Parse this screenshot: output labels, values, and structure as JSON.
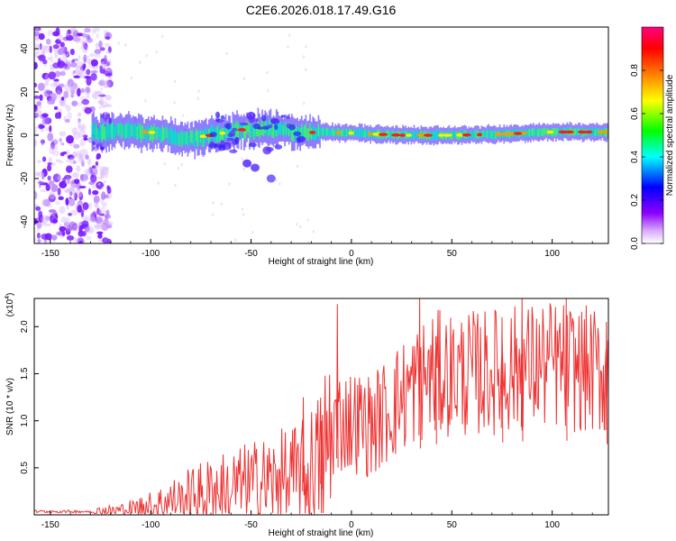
{
  "title": "C2E6.2026.018.17.49.G16",
  "chart_data": [
    {
      "type": "heatmap",
      "name": "spectrogram",
      "xlabel": "Height of straight line (km)",
      "ylabel": "Frequency (Hz)",
      "xlim": [
        -158,
        128
      ],
      "ylim": [
        -50,
        50
      ],
      "xticks": [
        -150,
        -100,
        -50,
        0,
        50,
        100
      ],
      "yticks": [
        -40,
        -20,
        0,
        20,
        40
      ],
      "colorbar": {
        "label": "Normalized spectral amplitude",
        "range": [
          0.0,
          1.0
        ],
        "ticks": [
          "0.0",
          "0.2",
          "0.4",
          "0.6",
          "0.8"
        ],
        "colors": [
          "#ffffff",
          "#8b00ff",
          "#0000ff",
          "#00ffff",
          "#00ff00",
          "#ffff00",
          "#ff8000",
          "#ff0000",
          "#ff0080"
        ]
      },
      "noise_region_km": [
        -158,
        -128
      ],
      "signal_track": [
        {
          "x": -128,
          "f": 1.5
        },
        {
          "x": -110,
          "f": 2
        },
        {
          "x": -95,
          "f": 1
        },
        {
          "x": -85,
          "f": -2
        },
        {
          "x": -70,
          "f": 0
        },
        {
          "x": -55,
          "f": 2.5
        },
        {
          "x": -40,
          "f": 3
        },
        {
          "x": -25,
          "f": 1
        },
        {
          "x": -15,
          "f": 1.5
        },
        {
          "x": 0,
          "f": 1
        },
        {
          "x": 25,
          "f": 0
        },
        {
          "x": 50,
          "f": 0
        },
        {
          "x": 75,
          "f": 0.5
        },
        {
          "x": 100,
          "f": 1.5
        },
        {
          "x": 128,
          "f": 1.5
        }
      ],
      "blobs": [
        {
          "x": -50,
          "f": 9,
          "a": 0.4
        },
        {
          "x": -42,
          "f": -7,
          "a": 0.3
        },
        {
          "x": -52,
          "f": -13,
          "a": 0.5
        },
        {
          "x": -48,
          "f": -15,
          "a": 0.4
        },
        {
          "x": -40,
          "f": -20,
          "a": 0.2
        },
        {
          "x": -62,
          "f": -5,
          "a": 0.25
        }
      ]
    },
    {
      "type": "line",
      "name": "snr",
      "xlabel": "Height of straight line (km)",
      "ylabel": "SNR (10 * v/v)",
      "yscale_label": "(x10",
      "yscale_exp": "4",
      "xlim": [
        -158,
        128
      ],
      "ylim": [
        0,
        2.3
      ],
      "xticks": [
        -150,
        -100,
        -50,
        0,
        50,
        100
      ],
      "yticks": [
        "0.5",
        "1.0",
        "1.5",
        "2.0"
      ],
      "color": "#ee3333",
      "trend": [
        {
          "x": -158,
          "y": 0.02
        },
        {
          "x": -130,
          "y": 0.03
        },
        {
          "x": -115,
          "y": 0.05
        },
        {
          "x": -100,
          "y": 0.1
        },
        {
          "x": -85,
          "y": 0.18
        },
        {
          "x": -70,
          "y": 0.25
        },
        {
          "x": -55,
          "y": 0.3
        },
        {
          "x": -40,
          "y": 0.35
        },
        {
          "x": -25,
          "y": 0.4
        },
        {
          "x": -15,
          "y": 0.55
        },
        {
          "x": -8,
          "y": 1.0
        },
        {
          "x": 0,
          "y": 1.0
        },
        {
          "x": 10,
          "y": 0.95
        },
        {
          "x": 20,
          "y": 1.15
        },
        {
          "x": 30,
          "y": 1.35
        },
        {
          "x": 40,
          "y": 1.5
        },
        {
          "x": 60,
          "y": 1.5
        },
        {
          "x": 80,
          "y": 1.55
        },
        {
          "x": 100,
          "y": 1.6
        },
        {
          "x": 128,
          "y": 1.5
        }
      ],
      "spikes": [
        {
          "x": -7,
          "y": 2.24
        },
        {
          "x": 34,
          "y": 2.3
        },
        {
          "x": 42,
          "y": 1.9
        },
        {
          "x": 85,
          "y": 2.3
        },
        {
          "x": 107,
          "y": 2.3
        },
        {
          "x": 75,
          "y": 2.1
        },
        {
          "x": 127,
          "y": 2.05
        },
        {
          "x": -24,
          "y": 1.25
        },
        {
          "x": -15,
          "y": 1.0
        }
      ]
    }
  ]
}
